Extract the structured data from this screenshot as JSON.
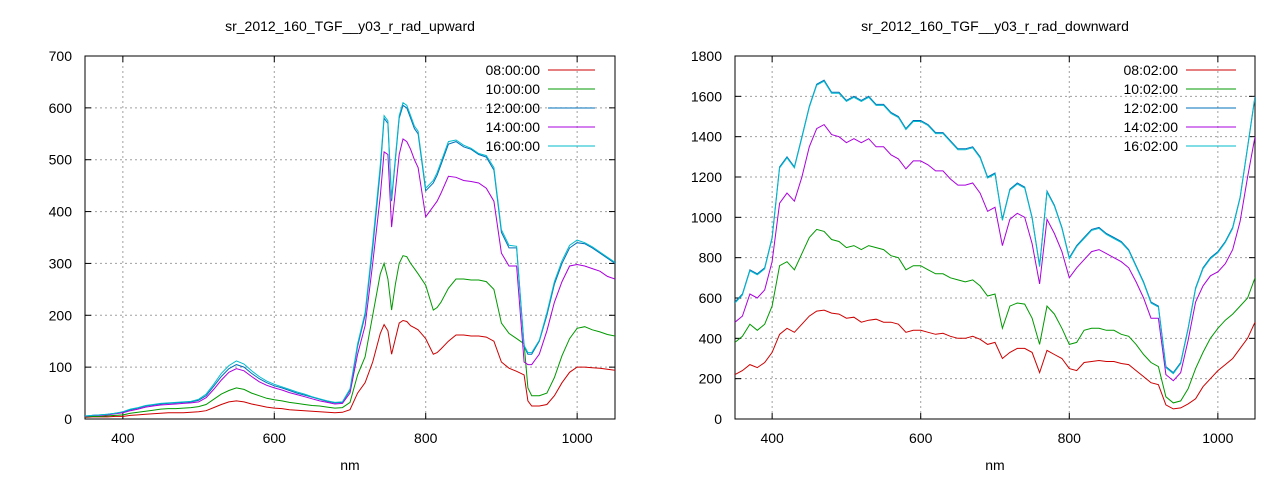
{
  "chart_data": [
    {
      "type": "line",
      "title": "sr_2012_160_TGF__y03_r_rad_upward",
      "xlabel": "nm",
      "ylabel": "",
      "xlim": [
        350,
        1050
      ],
      "ylim": [
        0,
        700
      ],
      "xticks": [
        400,
        600,
        800,
        1000
      ],
      "yticks": [
        0,
        100,
        200,
        300,
        400,
        500,
        600,
        700
      ],
      "grid": true,
      "legend": "top-right",
      "x": [
        350,
        360,
        370,
        380,
        390,
        400,
        410,
        420,
        430,
        440,
        450,
        460,
        470,
        480,
        490,
        500,
        510,
        520,
        530,
        540,
        550,
        560,
        570,
        580,
        590,
        600,
        610,
        620,
        630,
        640,
        650,
        660,
        670,
        680,
        690,
        700,
        710,
        720,
        730,
        740,
        745,
        750,
        755,
        760,
        765,
        770,
        775,
        780,
        785,
        790,
        800,
        810,
        815,
        820,
        830,
        840,
        850,
        860,
        870,
        880,
        890,
        900,
        910,
        920,
        930,
        935,
        940,
        950,
        960,
        970,
        980,
        990,
        1000,
        1010,
        1020,
        1030,
        1040,
        1050
      ],
      "series": [
        {
          "name": "08:00:00",
          "color": "#cc0000",
          "values": [
            3,
            4,
            4,
            4,
            5,
            5,
            7,
            8,
            9,
            10,
            11,
            12,
            12,
            12,
            13,
            14,
            16,
            22,
            28,
            33,
            35,
            33,
            29,
            26,
            23,
            21,
            20,
            18,
            17,
            16,
            15,
            14,
            13,
            12,
            13,
            18,
            50,
            70,
            110,
            165,
            182,
            170,
            125,
            155,
            185,
            190,
            188,
            180,
            176,
            172,
            155,
            125,
            128,
            135,
            150,
            162,
            162,
            160,
            160,
            158,
            150,
            110,
            98,
            92,
            85,
            35,
            25,
            25,
            28,
            45,
            70,
            90,
            100,
            100,
            99,
            98,
            96,
            94
          ]
        },
        {
          "name": "10:00:00",
          "color": "#009900",
          "values": [
            4,
            5,
            5,
            6,
            7,
            8,
            11,
            13,
            15,
            17,
            19,
            20,
            20,
            21,
            22,
            24,
            28,
            38,
            48,
            55,
            60,
            57,
            50,
            45,
            40,
            37,
            35,
            32,
            30,
            28,
            26,
            25,
            23,
            21,
            22,
            32,
            85,
            120,
            200,
            280,
            300,
            270,
            210,
            260,
            300,
            315,
            313,
            300,
            290,
            280,
            258,
            210,
            215,
            225,
            252,
            270,
            270,
            268,
            268,
            265,
            250,
            185,
            165,
            155,
            145,
            60,
            45,
            45,
            50,
            80,
            122,
            155,
            175,
            178,
            172,
            168,
            163,
            160
          ]
        },
        {
          "name": "12:00:00",
          "color": "#0070bb",
          "values": [
            5,
            7,
            8,
            9,
            11,
            13,
            18,
            21,
            25,
            27,
            29,
            30,
            31,
            32,
            33,
            36,
            45,
            63,
            82,
            97,
            105,
            100,
            88,
            78,
            70,
            64,
            60,
            55,
            50,
            46,
            42,
            38,
            34,
            31,
            32,
            55,
            140,
            200,
            330,
            480,
            580,
            570,
            420,
            500,
            580,
            605,
            600,
            580,
            560,
            550,
            440,
            455,
            470,
            490,
            530,
            535,
            525,
            520,
            510,
            505,
            480,
            360,
            330,
            330,
            140,
            125,
            125,
            150,
            200,
            260,
            300,
            330,
            340,
            338,
            330,
            320,
            310,
            300
          ]
        },
        {
          "name": "14:00:00",
          "color": "#aa00dd",
          "values": [
            5,
            7,
            7,
            8,
            10,
            12,
            16,
            19,
            23,
            25,
            27,
            28,
            29,
            30,
            31,
            33,
            41,
            57,
            75,
            90,
            97,
            93,
            82,
            72,
            65,
            60,
            56,
            51,
            47,
            43,
            39,
            35,
            32,
            29,
            30,
            50,
            125,
            180,
            300,
            430,
            515,
            510,
            370,
            440,
            510,
            540,
            535,
            520,
            500,
            485,
            390,
            410,
            420,
            435,
            468,
            466,
            460,
            458,
            455,
            445,
            420,
            320,
            295,
            295,
            110,
            105,
            105,
            125,
            170,
            225,
            265,
            295,
            298,
            295,
            290,
            285,
            275,
            270
          ]
        },
        {
          "name": "16:00:00",
          "color": "#00bbcc",
          "values": [
            6,
            7,
            8,
            9,
            11,
            14,
            19,
            22,
            26,
            28,
            30,
            31,
            32,
            33,
            34,
            38,
            48,
            67,
            88,
            103,
            112,
            106,
            93,
            82,
            73,
            67,
            62,
            57,
            52,
            48,
            43,
            39,
            35,
            32,
            33,
            58,
            145,
            205,
            340,
            490,
            585,
            575,
            425,
            505,
            585,
            610,
            605,
            585,
            565,
            555,
            445,
            460,
            475,
            495,
            535,
            538,
            528,
            522,
            512,
            508,
            485,
            365,
            335,
            333,
            142,
            128,
            128,
            152,
            205,
            265,
            305,
            335,
            345,
            340,
            332,
            322,
            312,
            302
          ]
        }
      ]
    },
    {
      "type": "line",
      "title": "sr_2012_160_TGF__y03_r_rad_downward",
      "xlabel": "nm",
      "ylabel": "",
      "xlim": [
        350,
        1050
      ],
      "ylim": [
        0,
        1800
      ],
      "xticks": [
        400,
        600,
        800,
        1000
      ],
      "yticks": [
        0,
        200,
        400,
        600,
        800,
        1000,
        1200,
        1400,
        1600,
        1800
      ],
      "grid": true,
      "legend": "top-right",
      "x": [
        350,
        360,
        370,
        380,
        390,
        400,
        410,
        420,
        430,
        440,
        450,
        460,
        470,
        480,
        490,
        500,
        510,
        520,
        530,
        540,
        550,
        560,
        570,
        580,
        590,
        600,
        610,
        620,
        630,
        640,
        650,
        660,
        670,
        680,
        690,
        700,
        710,
        720,
        730,
        740,
        750,
        760,
        770,
        780,
        790,
        800,
        810,
        820,
        830,
        840,
        850,
        860,
        870,
        880,
        890,
        900,
        910,
        920,
        930,
        940,
        950,
        960,
        970,
        980,
        990,
        1000,
        1010,
        1020,
        1030,
        1040,
        1050
      ],
      "series": [
        {
          "name": "08:02:00",
          "color": "#cc0000",
          "values": [
            220,
            240,
            270,
            255,
            280,
            330,
            420,
            450,
            430,
            470,
            510,
            535,
            540,
            525,
            520,
            500,
            505,
            480,
            490,
            495,
            480,
            480,
            470,
            430,
            440,
            440,
            430,
            420,
            425,
            410,
            400,
            400,
            410,
            395,
            370,
            380,
            300,
            330,
            350,
            350,
            330,
            230,
            340,
            320,
            300,
            250,
            240,
            280,
            285,
            290,
            285,
            285,
            275,
            270,
            240,
            210,
            180,
            170,
            70,
            50,
            55,
            75,
            100,
            160,
            200,
            240,
            270,
            300,
            350,
            400,
            480
          ]
        },
        {
          "name": "10:02:00",
          "color": "#009900",
          "values": [
            380,
            410,
            470,
            440,
            470,
            560,
            760,
            780,
            740,
            820,
            900,
            940,
            930,
            890,
            880,
            850,
            860,
            840,
            860,
            850,
            840,
            810,
            800,
            740,
            760,
            760,
            740,
            720,
            720,
            700,
            690,
            680,
            690,
            660,
            610,
            620,
            450,
            560,
            575,
            570,
            500,
            370,
            560,
            520,
            450,
            370,
            380,
            440,
            450,
            450,
            440,
            440,
            420,
            410,
            370,
            320,
            280,
            260,
            110,
            80,
            90,
            150,
            250,
            330,
            400,
            450,
            490,
            520,
            560,
            600,
            700
          ]
        },
        {
          "name": "12:02:00",
          "color": "#0070bb",
          "values": [
            580,
            620,
            740,
            720,
            750,
            900,
            1250,
            1300,
            1250,
            1400,
            1550,
            1660,
            1680,
            1620,
            1620,
            1580,
            1600,
            1580,
            1600,
            1560,
            1560,
            1520,
            1500,
            1440,
            1480,
            1480,
            1460,
            1420,
            1420,
            1380,
            1340,
            1340,
            1350,
            1300,
            1200,
            1220,
            990,
            1140,
            1170,
            1150,
            1000,
            760,
            1130,
            1060,
            950,
            800,
            860,
            900,
            940,
            950,
            920,
            900,
            880,
            840,
            760,
            680,
            580,
            560,
            260,
            230,
            280,
            450,
            650,
            750,
            800,
            830,
            880,
            950,
            1100,
            1350,
            1600
          ]
        },
        {
          "name": "14:02:00",
          "color": "#aa00dd",
          "values": [
            480,
            510,
            620,
            600,
            640,
            780,
            1070,
            1120,
            1080,
            1200,
            1350,
            1440,
            1460,
            1410,
            1400,
            1370,
            1390,
            1370,
            1390,
            1350,
            1350,
            1310,
            1290,
            1240,
            1280,
            1280,
            1260,
            1230,
            1230,
            1190,
            1160,
            1160,
            1170,
            1120,
            1030,
            1050,
            860,
            990,
            1020,
            1000,
            870,
            670,
            990,
            920,
            830,
            700,
            750,
            790,
            830,
            840,
            820,
            800,
            780,
            750,
            680,
            600,
            500,
            500,
            220,
            190,
            230,
            390,
            580,
            660,
            710,
            730,
            770,
            840,
            980,
            1200,
            1400
          ]
        },
        {
          "name": "16:02:00",
          "color": "#00bbcc",
          "values": [
            575,
            615,
            735,
            715,
            745,
            895,
            1245,
            1295,
            1245,
            1395,
            1545,
            1655,
            1675,
            1615,
            1615,
            1575,
            1595,
            1575,
            1595,
            1555,
            1555,
            1515,
            1495,
            1435,
            1475,
            1475,
            1455,
            1415,
            1415,
            1375,
            1335,
            1335,
            1345,
            1295,
            1195,
            1215,
            985,
            1135,
            1165,
            1145,
            995,
            755,
            1125,
            1055,
            945,
            795,
            855,
            895,
            935,
            945,
            915,
            895,
            875,
            835,
            755,
            675,
            575,
            555,
            255,
            225,
            275,
            445,
            645,
            745,
            795,
            825,
            875,
            945,
            1095,
            1345,
            1595
          ]
        }
      ]
    }
  ]
}
